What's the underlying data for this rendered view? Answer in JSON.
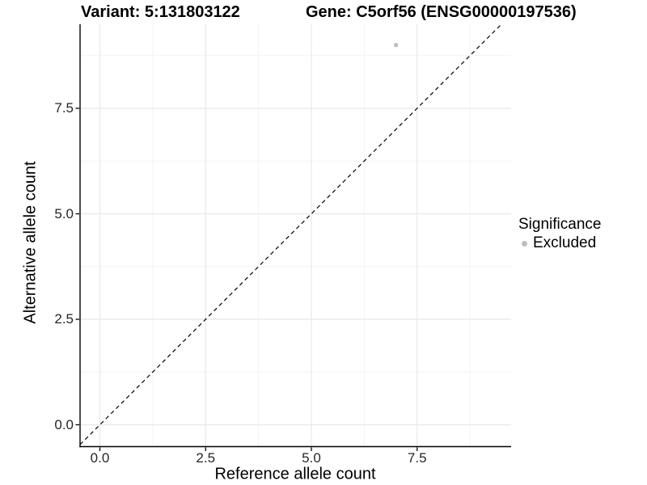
{
  "chart_data": {
    "type": "scatter",
    "title_left": "Variant: 5:131803122",
    "title_right": "Gene: C5orf56 (ENSG00000197536)",
    "xlabel": "Reference allele count",
    "ylabel": "Alternative allele count",
    "xlim": [
      -0.47,
      9.72
    ],
    "ylim": [
      -0.52,
      9.49
    ],
    "grid": true,
    "x_ticks": [
      {
        "value": 0,
        "label": "0.0"
      },
      {
        "value": 2.5,
        "label": "2.5"
      },
      {
        "value": 5,
        "label": "5.0"
      },
      {
        "value": 7.5,
        "label": "7.5"
      }
    ],
    "y_ticks": [
      {
        "value": 0,
        "label": "0.0"
      },
      {
        "value": 2.5,
        "label": "2.5"
      },
      {
        "value": 5,
        "label": "5.0"
      },
      {
        "value": 7.5,
        "label": "7.5"
      }
    ],
    "x_minor": [
      1.25,
      3.75,
      6.25,
      8.75
    ],
    "y_minor": [
      1.25,
      3.75,
      6.25,
      8.75
    ],
    "identity_line": {
      "slope": 1,
      "intercept": 0,
      "style": "dashed",
      "color": "#000000"
    },
    "series": [
      {
        "name": "Excluded",
        "color": "#bebebe",
        "points": [
          [
            7,
            9
          ]
        ]
      }
    ],
    "legend": {
      "title": "Significance",
      "position": "right",
      "entries": [
        {
          "label": "Excluded",
          "color": "#bebebe",
          "marker": "circle"
        }
      ]
    }
  },
  "colors": {
    "background": "#ffffff",
    "axis": "#000000",
    "grid_major": "#e8e8e8",
    "grid_minor": "#f3f3f3",
    "tick_text": "#262626",
    "point": "#bebebe"
  }
}
